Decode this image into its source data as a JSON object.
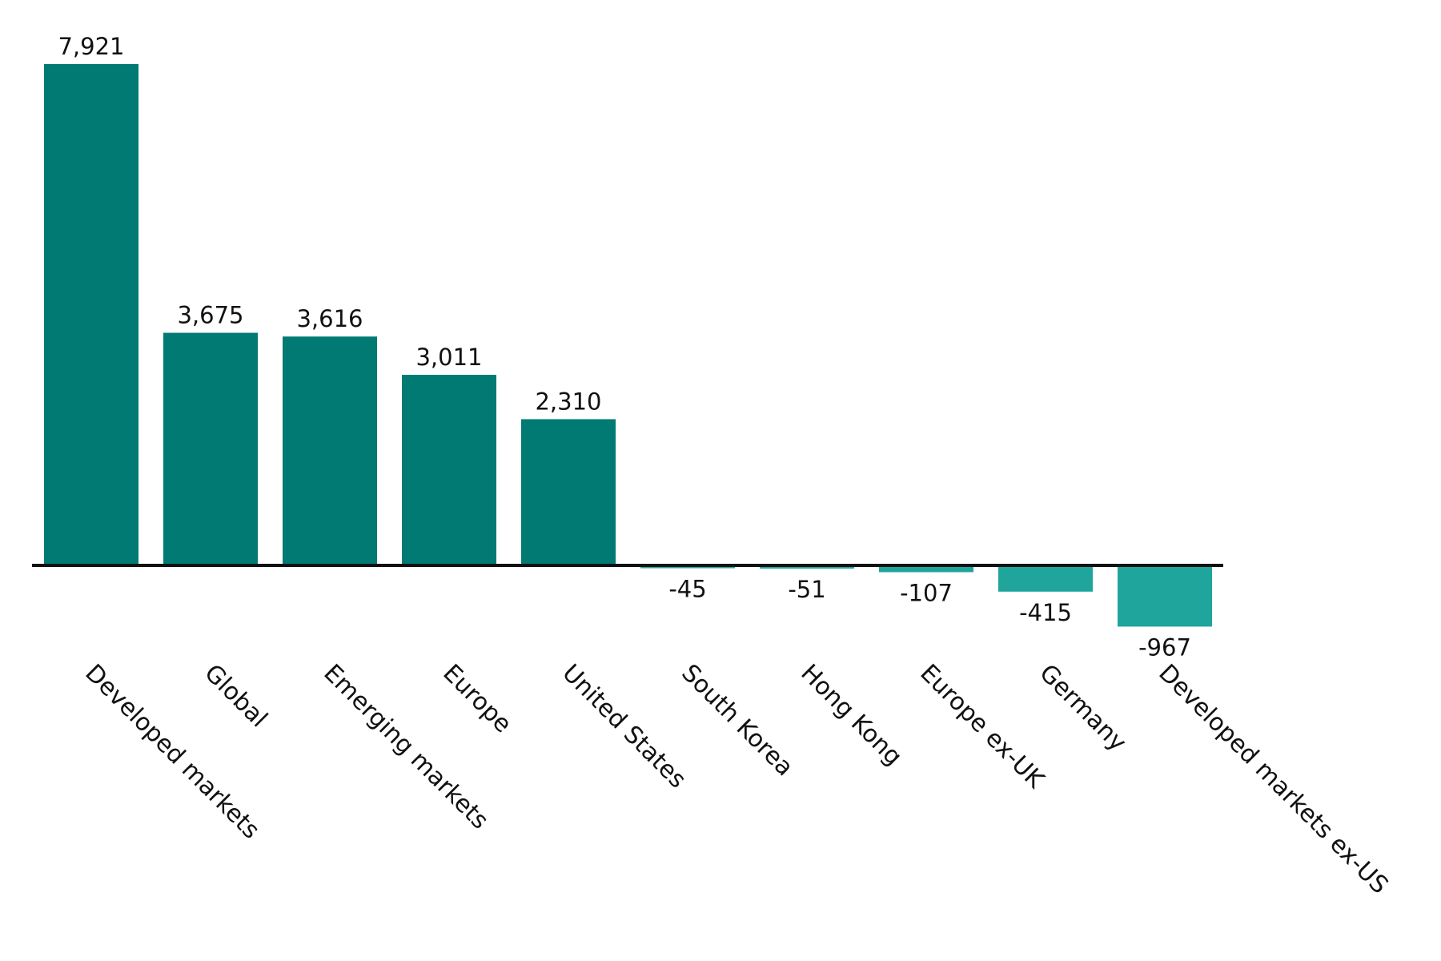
{
  "chart_data": {
    "type": "bar",
    "title": "",
    "xlabel": "",
    "ylabel": "",
    "categories": [
      "Developed markets",
      "Global",
      "Emerging markets",
      "Europe",
      "United States",
      "South Korea",
      "Hong Kong",
      "Europe ex-UK",
      "Germany",
      "Developed markets ex-US"
    ],
    "values": [
      7921,
      3675,
      3616,
      3011,
      2310,
      -45,
      -51,
      -107,
      -415,
      -967
    ],
    "value_labels": [
      "7,921",
      "3,675",
      "3,616",
      "3,011",
      "2,310",
      "-45",
      "-51",
      "-107",
      "-415",
      "-967"
    ],
    "colors": {
      "positive": "#007A72",
      "negative": "#1FA59C",
      "axis": "#111111"
    },
    "grid": false,
    "legend": "none"
  }
}
